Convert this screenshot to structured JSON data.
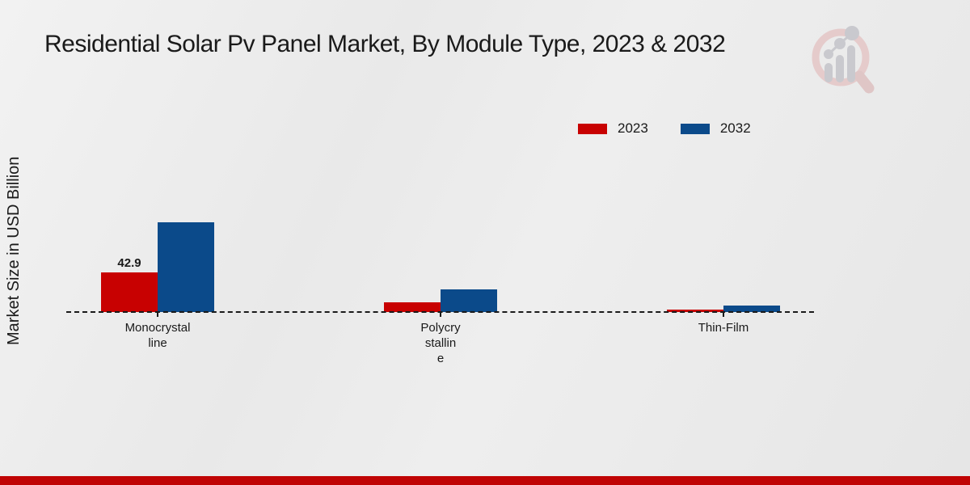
{
  "page": {
    "title": "Residential Solar Pv Panel Market, By Module Type, 2023 & 2032"
  },
  "y_axis": {
    "label": "Market Size in USD Billion"
  },
  "colors": {
    "text": "#1a1a1a",
    "series_2023": "#c80101",
    "series_2032": "#0b4a8a",
    "footer_bar": "#c00404",
    "logo_ring": "#e5cbcb",
    "logo_bars": "#c9c9ce"
  },
  "logo": {
    "name": "market-research-analytics-watermark"
  },
  "chart_data": {
    "type": "bar",
    "title": "Residential Solar Pv Panel Market, By Module Type, 2023 & 2032",
    "xlabel": "",
    "ylabel": "Market Size in USD Billion",
    "ylim": [
      0,
      100
    ],
    "grid": false,
    "legend_position": "top-right",
    "baseline_style": "dashed",
    "categories": [
      "Monocrystalline",
      "Polycrystalline",
      "Thin-Film"
    ],
    "category_label_lines": [
      [
        "Monocrystal",
        "line"
      ],
      [
        "Polycry",
        "stallin",
        "e"
      ],
      [
        "Thin-Film"
      ]
    ],
    "series": [
      {
        "name": "2023",
        "color": "#c80101",
        "values": [
          42.9,
          10.5,
          3.0
        ],
        "data_labels": [
          "42.9",
          "",
          ""
        ]
      },
      {
        "name": "2032",
        "color": "#0b4a8a",
        "values": [
          97.2,
          24.5,
          7.0
        ],
        "data_labels": [
          "",
          "",
          ""
        ]
      }
    ]
  }
}
